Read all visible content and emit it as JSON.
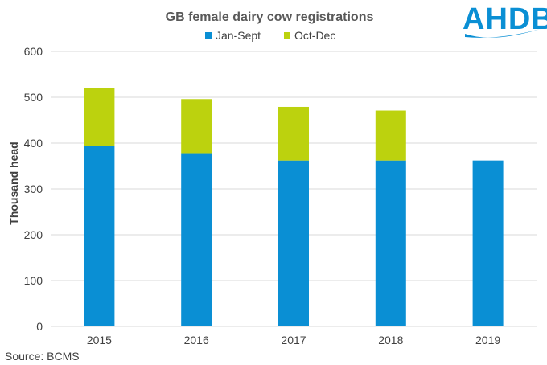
{
  "chart_data": {
    "type": "bar",
    "stacked": true,
    "title": "GB female dairy cow registrations",
    "categories": [
      "2015",
      "2016",
      "2017",
      "2018",
      "2019"
    ],
    "series": [
      {
        "name": "Jan-Sept",
        "color": "#0a8fd4",
        "values": [
          394,
          378,
          362,
          362,
          362
        ]
      },
      {
        "name": "Oct-Dec",
        "color": "#bcd20e",
        "values": [
          126,
          118,
          117,
          109,
          0
        ]
      }
    ],
    "xlabel": "",
    "ylabel": "Thousand head",
    "ylim": [
      0,
      600
    ],
    "yticks": [
      0,
      100,
      200,
      300,
      400,
      500,
      600
    ],
    "grid": true,
    "legend_position": "top"
  },
  "source": "Source: BCMS",
  "logo": {
    "text": "AHDB",
    "color": "#0a8fd4"
  }
}
